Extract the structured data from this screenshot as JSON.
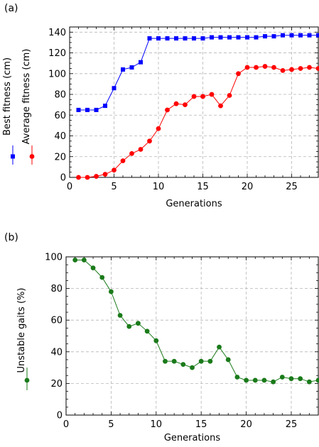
{
  "chart_data": [
    {
      "panel_label": "(a)",
      "type": "line",
      "xlabel": "Generations",
      "ylabels": [
        "Best fitness (cm)",
        "Average fitness (cm)"
      ],
      "xlim": [
        0,
        28
      ],
      "ylim": [
        0,
        145
      ],
      "xticks": [
        "0",
        "5",
        "10",
        "15",
        "20",
        "25"
      ],
      "yticks": [
        "0",
        "20",
        "40",
        "60",
        "80",
        "100",
        "120",
        "140"
      ],
      "grid": true,
      "legend": "left-vertical",
      "series": [
        {
          "name": "Best fitness (cm)",
          "color": "#0000ff",
          "marker": "square",
          "x": [
            1,
            2,
            3,
            4,
            5,
            6,
            7,
            8,
            9,
            10,
            11,
            12,
            13,
            14,
            15,
            16,
            17,
            18,
            19,
            20,
            21,
            22,
            23,
            24,
            25,
            26,
            27,
            28
          ],
          "y": [
            65,
            65,
            65,
            69,
            86,
            104,
            106,
            111,
            134,
            134,
            134,
            134,
            134,
            134,
            134,
            135,
            135,
            135,
            135,
            135,
            135,
            136,
            136,
            137,
            137,
            137,
            137,
            137
          ]
        },
        {
          "name": "Average fitness (cm)",
          "color": "#ff0000",
          "marker": "circle",
          "x": [
            1,
            2,
            3,
            4,
            5,
            6,
            7,
            8,
            9,
            10,
            11,
            12,
            13,
            14,
            15,
            16,
            17,
            18,
            19,
            20,
            21,
            22,
            23,
            24,
            25,
            26,
            27,
            28
          ],
          "y": [
            0,
            0,
            1,
            3,
            7,
            16,
            23,
            27,
            35,
            47,
            65,
            71,
            70,
            78,
            78,
            80,
            69,
            79,
            100,
            106,
            106,
            107,
            106,
            103,
            104,
            105,
            106,
            105
          ]
        }
      ]
    },
    {
      "panel_label": "(b)",
      "type": "line",
      "xlabel": "Generations",
      "ylabels": [
        "Unstable gaits (%)"
      ],
      "xlim": [
        0,
        28
      ],
      "ylim": [
        0,
        100
      ],
      "xticks": [
        "0",
        "5",
        "10",
        "15",
        "20",
        "25"
      ],
      "yticks": [
        "0",
        "20",
        "40",
        "60",
        "80",
        "100"
      ],
      "grid": true,
      "legend": "left-vertical",
      "series": [
        {
          "name": "Unstable gaits (%)",
          "color": "#1a7a1a",
          "marker": "circle",
          "x": [
            1,
            2,
            3,
            4,
            5,
            6,
            7,
            8,
            9,
            10,
            11,
            12,
            13,
            14,
            15,
            16,
            17,
            18,
            19,
            20,
            21,
            22,
            23,
            24,
            25,
            26,
            27,
            28
          ],
          "y": [
            98,
            98,
            93,
            87,
            78,
            63,
            56,
            58,
            53,
            47,
            34,
            34,
            32,
            30,
            34,
            34,
            43,
            35,
            24,
            22,
            22,
            22,
            21,
            24,
            23,
            23,
            21,
            22
          ]
        }
      ]
    }
  ]
}
